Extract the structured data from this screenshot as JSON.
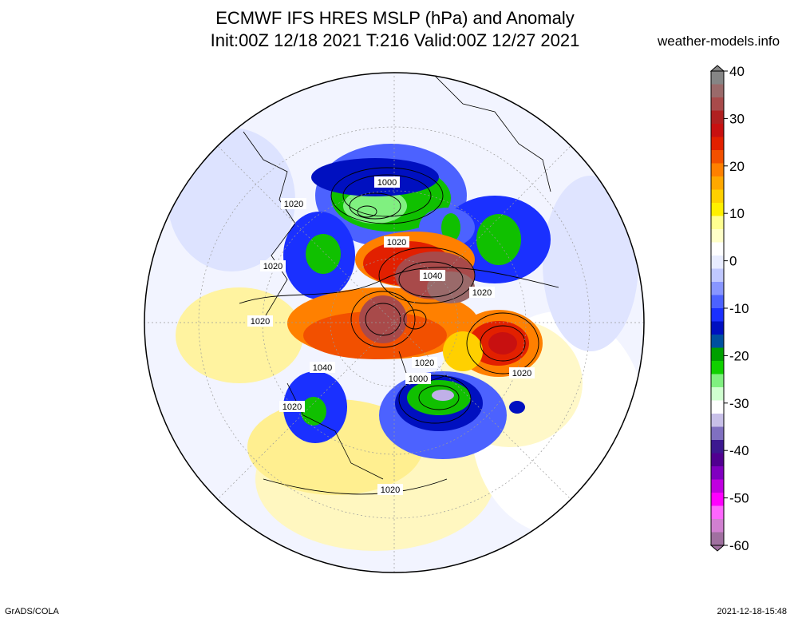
{
  "header": {
    "title_line1": "ECMWF IFS HRES MSLP (hPa) and Anomaly",
    "title_line2": "Init:00Z 12/18 2021 T:216 Valid:00Z 12/27 2021",
    "source": "weather-models.info"
  },
  "footer": {
    "software": "GrADS/COLA",
    "timestamp": "2021-12-18-15:48"
  },
  "colorbar": {
    "ticks": [
      "40",
      "30",
      "20",
      "10",
      "0",
      "-10",
      "-20",
      "-30",
      "-40",
      "-50",
      "-60"
    ],
    "colors": [
      "#858585",
      "#9a6a6a",
      "#a84a4a",
      "#b02020",
      "#c81010",
      "#e22000",
      "#f25000",
      "#ff8000",
      "#ffa800",
      "#ffd000",
      "#fff000",
      "#ffff90",
      "#ffffc8",
      "#ffffff",
      "#e8ecff",
      "#c0c8ff",
      "#8896ff",
      "#4c62ff",
      "#1a30ff",
      "#0010c0",
      "#0050a0",
      "#00a000",
      "#10d000",
      "#80f080",
      "#d0ffd0",
      "#ffffff",
      "#c8c0e8",
      "#8070c0",
      "#3c1890",
      "#500090",
      "#8000c0",
      "#c000e0",
      "#ff00ff",
      "#ff66ff",
      "#d080d0",
      "#a070a0"
    ]
  },
  "isobar_labels": [
    {
      "text": "1000"
    },
    {
      "text": "1020"
    },
    {
      "text": "1020"
    },
    {
      "text": "1020"
    },
    {
      "text": "1020"
    },
    {
      "text": "1040"
    },
    {
      "text": "1020"
    },
    {
      "text": "1040"
    },
    {
      "text": "1020"
    },
    {
      "text": "1000"
    },
    {
      "text": "1020"
    },
    {
      "text": "1020"
    },
    {
      "text": "1020"
    }
  ]
}
